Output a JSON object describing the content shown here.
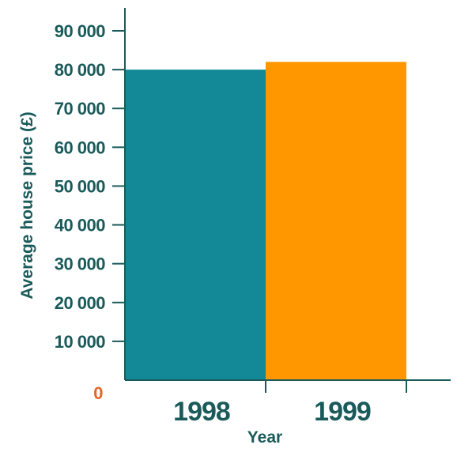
{
  "chart_data": {
    "type": "bar",
    "title": "",
    "xlabel": "Year",
    "ylabel": "Average house price (£)",
    "categories": [
      "1998",
      "1999"
    ],
    "values": [
      80000,
      82000
    ],
    "bar_colors": [
      "#138896",
      "#ff9800"
    ],
    "ylim": [
      0,
      90000
    ],
    "yticks": [
      {
        "value": 0,
        "label": "0"
      },
      {
        "value": 10000,
        "label": "10 000"
      },
      {
        "value": 20000,
        "label": "20 000"
      },
      {
        "value": 30000,
        "label": "30 000"
      },
      {
        "value": 40000,
        "label": "40 000"
      },
      {
        "value": 50000,
        "label": "50 000"
      },
      {
        "value": 60000,
        "label": "60 000"
      },
      {
        "value": 70000,
        "label": "70 000"
      },
      {
        "value": 80000,
        "label": "80 000"
      },
      {
        "value": 90000,
        "label": "90 000"
      }
    ],
    "grid": false,
    "legend": "none"
  },
  "colors": {
    "text": "#1b5a5a",
    "zero_label": "#e0662a",
    "axis": "#1b5a5a"
  }
}
